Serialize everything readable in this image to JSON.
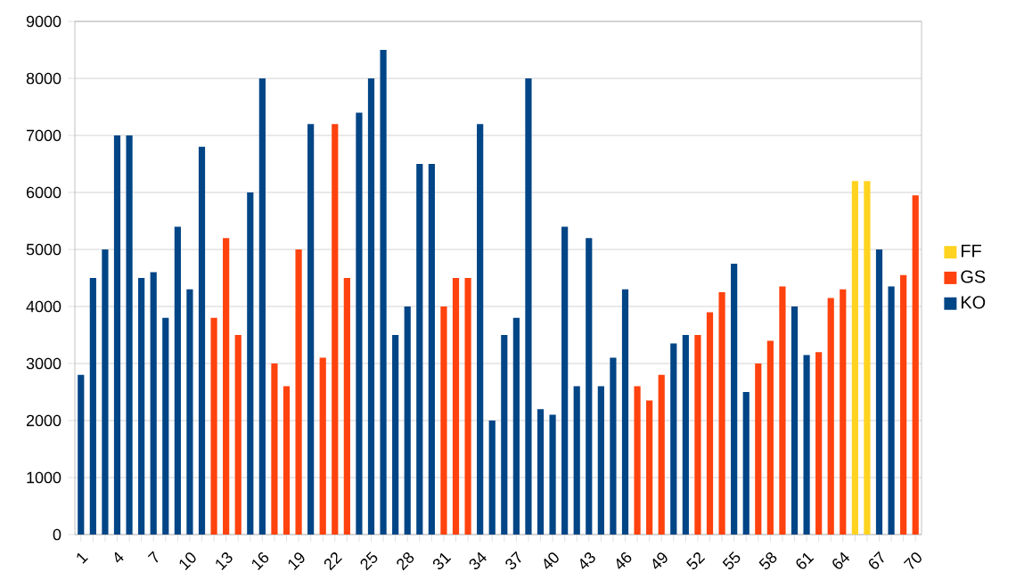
{
  "chart_data": {
    "type": "bar",
    "categories": [
      "1",
      null,
      null,
      "4",
      null,
      null,
      "7",
      null,
      null,
      "10",
      null,
      null,
      "13",
      null,
      null,
      "16",
      null,
      null,
      "19",
      null,
      null,
      "22",
      null,
      null,
      "25",
      null,
      null,
      "28",
      null,
      null,
      "31",
      null,
      null,
      "34",
      null,
      null,
      "37",
      null,
      null,
      "40",
      null,
      null,
      "43",
      null,
      null,
      "46",
      null,
      null,
      "49",
      null,
      null,
      "52",
      null,
      null,
      "55",
      null,
      null,
      "58",
      null,
      null,
      "61",
      null,
      null,
      "64",
      null,
      null,
      "67",
      null,
      null,
      "70"
    ],
    "series": [
      {
        "name": "FF",
        "color": "#ffd320",
        "values": [
          null,
          null,
          null,
          null,
          null,
          null,
          null,
          null,
          null,
          null,
          null,
          null,
          null,
          null,
          null,
          null,
          null,
          null,
          null,
          null,
          null,
          null,
          null,
          null,
          null,
          null,
          null,
          null,
          null,
          null,
          null,
          null,
          null,
          null,
          null,
          null,
          null,
          null,
          null,
          null,
          null,
          null,
          null,
          null,
          null,
          null,
          null,
          null,
          null,
          null,
          null,
          null,
          null,
          null,
          null,
          null,
          null,
          null,
          null,
          null,
          null,
          null,
          null,
          null,
          6200,
          6200,
          null,
          null,
          null,
          null
        ]
      },
      {
        "name": "GS",
        "color": "#ff420e",
        "values": [
          null,
          null,
          null,
          null,
          null,
          null,
          null,
          null,
          null,
          null,
          null,
          3800,
          5200,
          3500,
          null,
          null,
          3000,
          2600,
          5000,
          null,
          3100,
          7200,
          4500,
          null,
          null,
          null,
          null,
          null,
          null,
          null,
          4000,
          4500,
          4500,
          null,
          null,
          null,
          null,
          null,
          null,
          null,
          null,
          null,
          null,
          null,
          null,
          null,
          2600,
          2350,
          2800,
          null,
          null,
          3500,
          3900,
          4250,
          null,
          null,
          3000,
          3400,
          4350,
          null,
          null,
          3200,
          4150,
          4300,
          null,
          null,
          null,
          null,
          4550,
          5950
        ]
      },
      {
        "name": "KO",
        "color": "#004586",
        "values": [
          2800,
          4500,
          5000,
          7000,
          7000,
          4500,
          4600,
          3800,
          5400,
          4300,
          6800,
          null,
          null,
          null,
          6000,
          8000,
          null,
          null,
          null,
          7200,
          null,
          null,
          null,
          7400,
          8000,
          8500,
          3500,
          4000,
          6500,
          6500,
          null,
          null,
          null,
          7200,
          2000,
          3500,
          3800,
          8000,
          2200,
          2100,
          5400,
          2600,
          5200,
          2600,
          3100,
          4300,
          null,
          null,
          null,
          3350,
          3500,
          null,
          null,
          null,
          4750,
          2500,
          null,
          null,
          null,
          4000,
          3150,
          null,
          null,
          null,
          null,
          null,
          5000,
          4350,
          null,
          null
        ]
      }
    ],
    "ylim": [
      0,
      9000
    ],
    "yticks": [
      0,
      1000,
      2000,
      3000,
      4000,
      5000,
      6000,
      7000,
      8000,
      9000
    ],
    "grid": "y",
    "legend": "right"
  }
}
